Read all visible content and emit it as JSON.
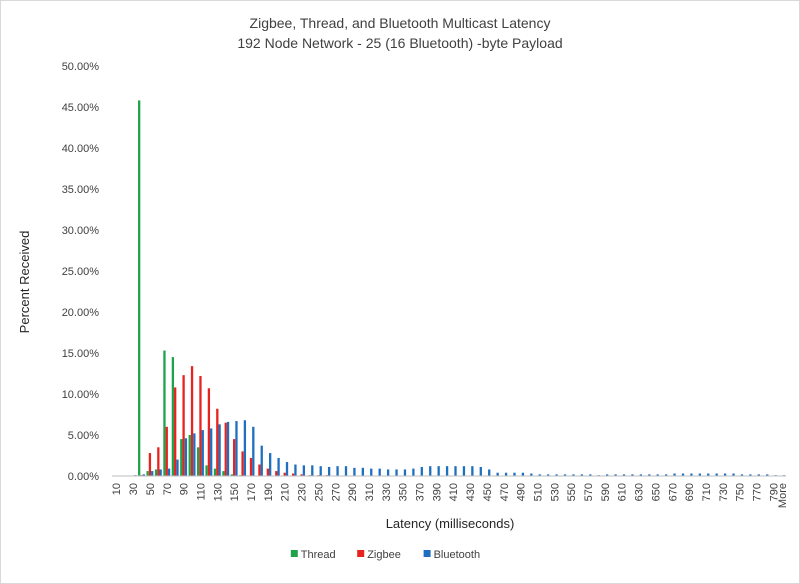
{
  "chart_data": {
    "type": "bar",
    "title": "Zigbee, Thread, and Bluetooth Multicast Latency",
    "subtitle": "192 Node Network - 25 (16 Bluetooth) -byte Payload",
    "xlabel": "Latency (milliseconds)",
    "ylabel": "Percent Received",
    "ylim": [
      0,
      0.5
    ],
    "yticks": [
      "0.00%",
      "5.00%",
      "10.00%",
      "15.00%",
      "20.00%",
      "25.00%",
      "30.00%",
      "35.00%",
      "40.00%",
      "45.00%",
      "50.00%"
    ],
    "grid": false,
    "legend_position": "bottom",
    "categories": [
      "10",
      "20",
      "30",
      "40",
      "50",
      "60",
      "70",
      "80",
      "90",
      "100",
      "110",
      "120",
      "130",
      "140",
      "150",
      "160",
      "170",
      "180",
      "190",
      "200",
      "210",
      "220",
      "230",
      "240",
      "250",
      "260",
      "270",
      "280",
      "290",
      "300",
      "310",
      "320",
      "330",
      "340",
      "350",
      "360",
      "370",
      "380",
      "390",
      "400",
      "410",
      "420",
      "430",
      "440",
      "450",
      "460",
      "470",
      "480",
      "490",
      "500",
      "510",
      "520",
      "530",
      "540",
      "550",
      "560",
      "570",
      "580",
      "590",
      "600",
      "610",
      "620",
      "630",
      "640",
      "650",
      "660",
      "670",
      "680",
      "690",
      "700",
      "710",
      "720",
      "730",
      "740",
      "750",
      "760",
      "770",
      "780",
      "790",
      "More"
    ],
    "series": [
      {
        "name": "Thread",
        "color": "#1fa34a",
        "values": [
          0,
          0,
          0,
          0.458,
          0.006,
          0.008,
          0.153,
          0.145,
          0.045,
          0.05,
          0.035,
          0.013,
          0.009,
          0.006,
          0.002,
          0.001,
          0,
          0,
          0,
          0,
          0,
          0,
          0,
          0,
          0,
          0,
          0,
          0,
          0,
          0,
          0,
          0,
          0,
          0,
          0,
          0,
          0,
          0,
          0,
          0,
          0,
          0,
          0,
          0,
          0,
          0,
          0,
          0,
          0,
          0,
          0,
          0,
          0,
          0,
          0,
          0,
          0,
          0,
          0,
          0,
          0,
          0,
          0,
          0,
          0,
          0,
          0,
          0,
          0,
          0,
          0,
          0,
          0,
          0,
          0,
          0,
          0,
          0,
          0,
          0
        ]
      },
      {
        "name": "Zigbee",
        "color": "#e8231f",
        "values": [
          0,
          0,
          0,
          0.001,
          0.028,
          0.035,
          0.06,
          0.108,
          0.123,
          0.134,
          0.122,
          0.107,
          0.082,
          0.065,
          0.045,
          0.03,
          0.022,
          0.014,
          0.009,
          0.006,
          0.004,
          0.003,
          0.002,
          0.001,
          0.001,
          0.001,
          0,
          0,
          0,
          0,
          0,
          0,
          0,
          0,
          0,
          0,
          0,
          0,
          0,
          0,
          0,
          0,
          0,
          0,
          0,
          0,
          0,
          0,
          0,
          0,
          0,
          0,
          0,
          0,
          0,
          0,
          0,
          0,
          0,
          0,
          0,
          0,
          0,
          0,
          0,
          0,
          0,
          0,
          0,
          0,
          0,
          0,
          0,
          0,
          0,
          0,
          0,
          0,
          0,
          0
        ]
      },
      {
        "name": "Bluetooth",
        "color": "#1f6fc0",
        "values": [
          0,
          0,
          0.001,
          0.002,
          0.006,
          0.008,
          0.009,
          0.02,
          0.046,
          0.052,
          0.056,
          0.058,
          0.063,
          0.066,
          0.067,
          0.068,
          0.06,
          0.037,
          0.028,
          0.022,
          0.017,
          0.014,
          0.013,
          0.013,
          0.012,
          0.011,
          0.012,
          0.012,
          0.01,
          0.01,
          0.009,
          0.009,
          0.008,
          0.008,
          0.008,
          0.009,
          0.011,
          0.012,
          0.012,
          0.012,
          0.012,
          0.012,
          0.012,
          0.011,
          0.008,
          0.004,
          0.004,
          0.004,
          0.004,
          0.003,
          0.002,
          0.002,
          0.002,
          0.002,
          0.002,
          0.002,
          0.002,
          0.001,
          0.002,
          0.002,
          0.002,
          0.002,
          0.002,
          0.002,
          0.002,
          0.002,
          0.003,
          0.003,
          0.003,
          0.003,
          0.003,
          0.003,
          0.003,
          0.003,
          0.002,
          0.002,
          0.002,
          0.002,
          0.001,
          0.001
        ]
      }
    ]
  }
}
